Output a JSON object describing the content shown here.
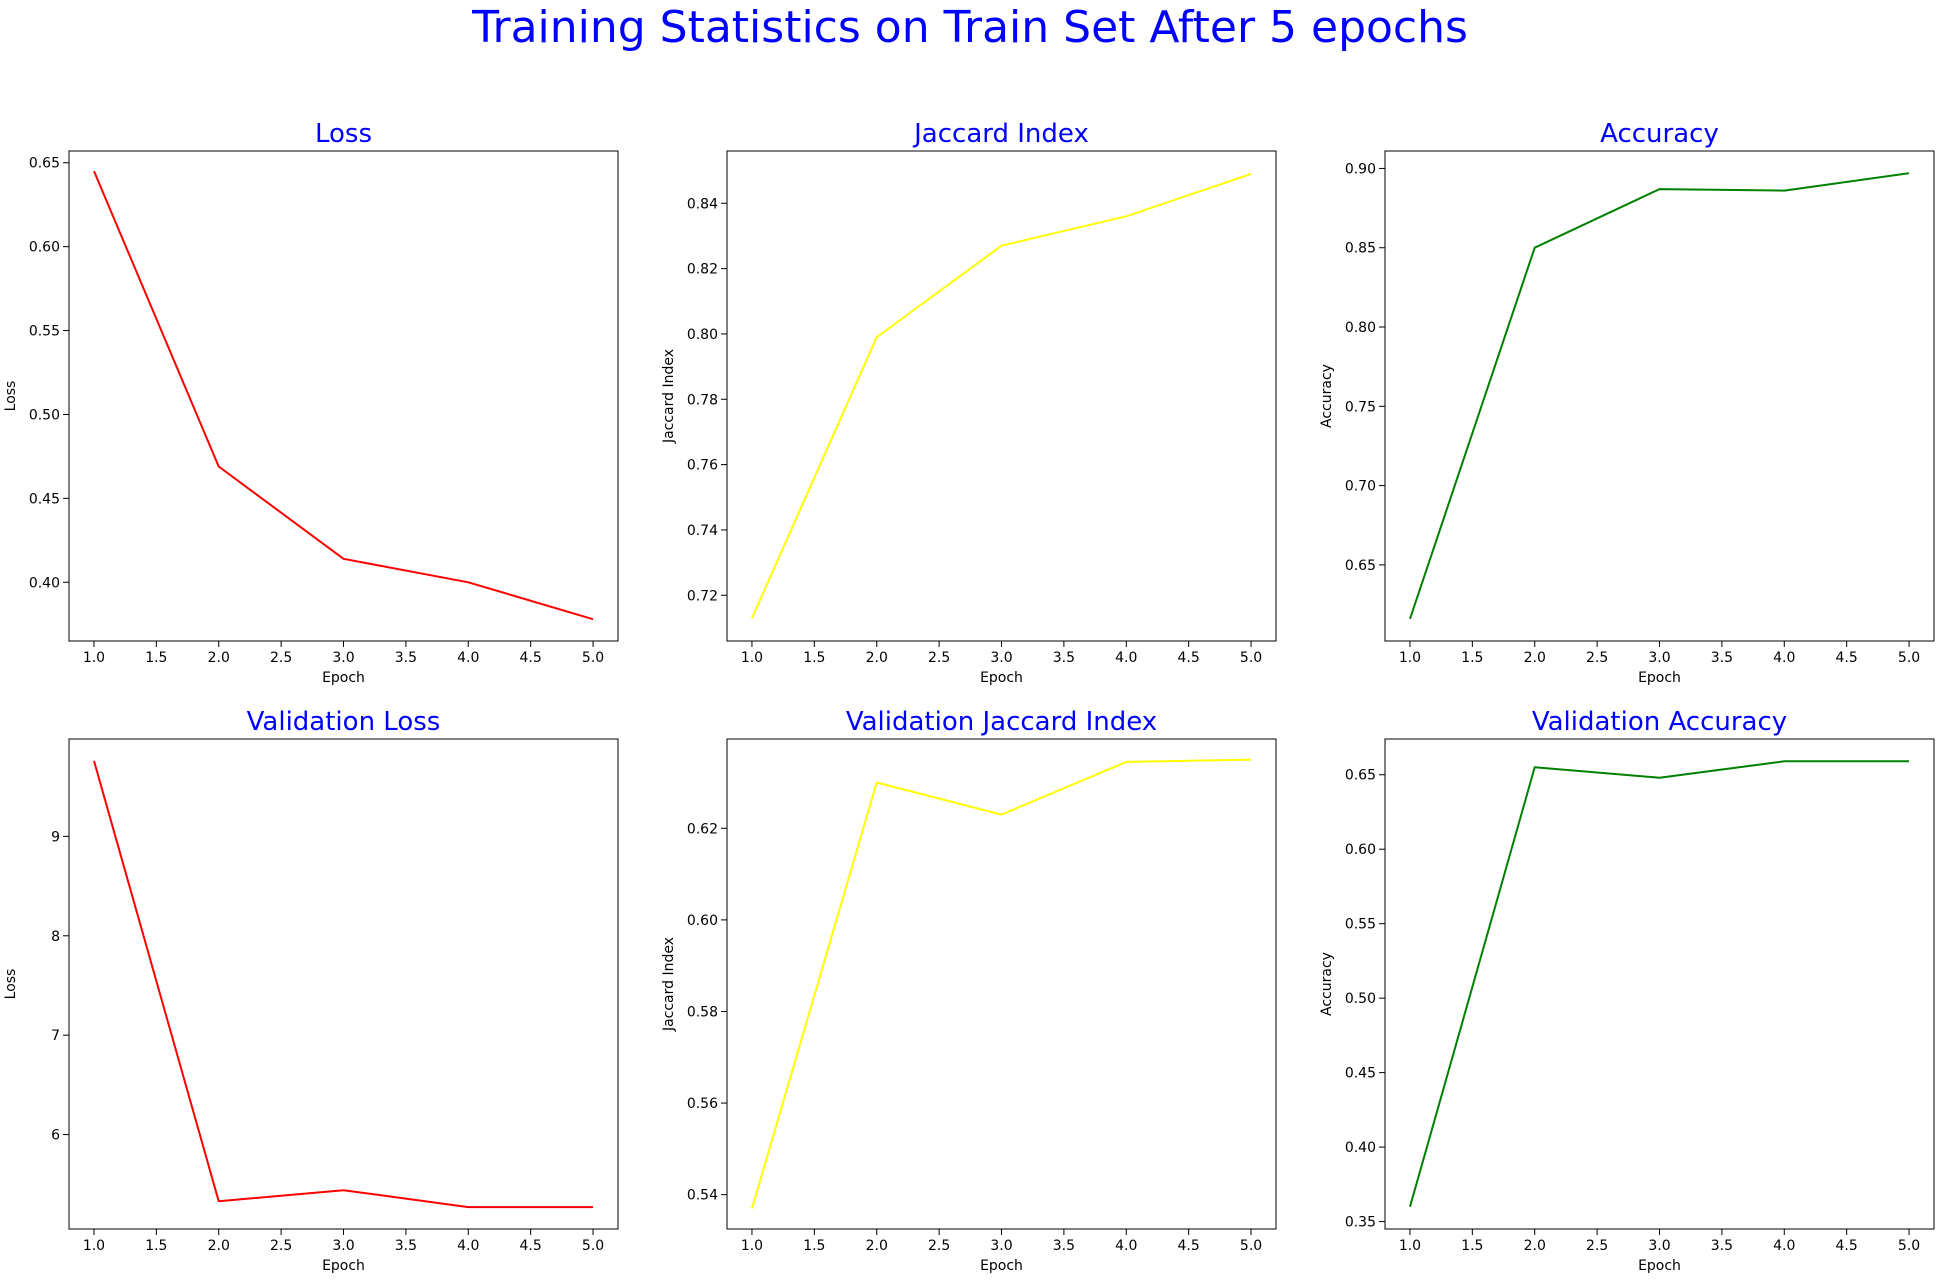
{
  "suptitle": "Training Statistics on Train Set After 5 epochs",
  "colors": {
    "title": "#0000ff",
    "loss": "#ff0000",
    "jaccard": "#ffff00",
    "accuracy": "#008000"
  },
  "chart_data": [
    {
      "type": "line",
      "title": "Loss",
      "xlabel": "Epoch",
      "ylabel": "Loss",
      "color": "#ff0000",
      "x": [
        1,
        2,
        3,
        4,
        5
      ],
      "series": [
        {
          "values": [
            0.645,
            0.469,
            0.414,
            0.4,
            0.378
          ]
        }
      ],
      "xlim": [
        0.8,
        5.2
      ],
      "ylim": [
        0.365,
        0.657
      ],
      "xticks": [
        "1.0",
        "1.5",
        "2.0",
        "2.5",
        "3.0",
        "3.5",
        "4.0",
        "4.5",
        "5.0"
      ],
      "yticks": [
        "0.40",
        "0.45",
        "0.50",
        "0.55",
        "0.60",
        "0.65"
      ],
      "grid": false
    },
    {
      "type": "line",
      "title": "Jaccard Index",
      "xlabel": "Epoch",
      "ylabel": "Jaccard Index",
      "color": "#ffff00",
      "x": [
        1,
        2,
        3,
        4,
        5
      ],
      "series": [
        {
          "values": [
            0.713,
            0.799,
            0.827,
            0.836,
            0.849
          ]
        }
      ],
      "xlim": [
        0.8,
        5.2
      ],
      "ylim": [
        0.706,
        0.856
      ],
      "xticks": [
        "1.0",
        "1.5",
        "2.0",
        "2.5",
        "3.0",
        "3.5",
        "4.0",
        "4.5",
        "5.0"
      ],
      "yticks": [
        "0.72",
        "0.74",
        "0.76",
        "0.78",
        "0.80",
        "0.82",
        "0.84"
      ],
      "grid": false
    },
    {
      "type": "line",
      "title": "Accuracy",
      "xlabel": "Epoch",
      "ylabel": "Accuracy",
      "color": "#008000",
      "x": [
        1,
        2,
        3,
        4,
        5
      ],
      "series": [
        {
          "values": [
            0.616,
            0.85,
            0.887,
            0.886,
            0.897
          ]
        }
      ],
      "xlim": [
        0.8,
        5.2
      ],
      "ylim": [
        0.602,
        0.911
      ],
      "xticks": [
        "1.0",
        "1.5",
        "2.0",
        "2.5",
        "3.0",
        "3.5",
        "4.0",
        "4.5",
        "5.0"
      ],
      "yticks": [
        "0.65",
        "0.70",
        "0.75",
        "0.80",
        "0.85",
        "0.90"
      ],
      "grid": false
    },
    {
      "type": "line",
      "title": "Validation Loss",
      "xlabel": "Epoch",
      "ylabel": "Loss",
      "color": "#ff0000",
      "x": [
        1,
        2,
        3,
        4,
        5
      ],
      "series": [
        {
          "values": [
            9.76,
            5.33,
            5.44,
            5.27,
            5.27
          ]
        }
      ],
      "xlim": [
        0.8,
        5.2
      ],
      "ylim": [
        5.05,
        9.98
      ],
      "xticks": [
        "1.0",
        "1.5",
        "2.0",
        "2.5",
        "3.0",
        "3.5",
        "4.0",
        "4.5",
        "5.0"
      ],
      "yticks": [
        "6",
        "7",
        "8",
        "9"
      ],
      "grid": false
    },
    {
      "type": "line",
      "title": "Validation Jaccard Index",
      "xlabel": "Epoch",
      "ylabel": "Jaccard Index",
      "color": "#ffff00",
      "x": [
        1,
        2,
        3,
        4,
        5
      ],
      "series": [
        {
          "values": [
            0.537,
            0.63,
            0.623,
            0.6345,
            0.635
          ]
        }
      ],
      "xlim": [
        0.8,
        5.2
      ],
      "ylim": [
        0.5325,
        0.6395
      ],
      "xticks": [
        "1.0",
        "1.5",
        "2.0",
        "2.5",
        "3.0",
        "3.5",
        "4.0",
        "4.5",
        "5.0"
      ],
      "yticks": [
        "0.54",
        "0.56",
        "0.58",
        "0.60",
        "0.62"
      ],
      "grid": false
    },
    {
      "type": "line",
      "title": "Validation Accuracy",
      "xlabel": "Epoch",
      "ylabel": "Accuracy",
      "color": "#008000",
      "x": [
        1,
        2,
        3,
        4,
        5
      ],
      "series": [
        {
          "values": [
            0.36,
            0.655,
            0.648,
            0.659,
            0.659
          ]
        }
      ],
      "xlim": [
        0.8,
        5.2
      ],
      "ylim": [
        0.345,
        0.674
      ],
      "xticks": [
        "1.0",
        "1.5",
        "2.0",
        "2.5",
        "3.0",
        "3.5",
        "4.0",
        "4.5",
        "5.0"
      ],
      "yticks": [
        "0.35",
        "0.40",
        "0.45",
        "0.50",
        "0.55",
        "0.60",
        "0.65"
      ],
      "grid": false
    }
  ]
}
